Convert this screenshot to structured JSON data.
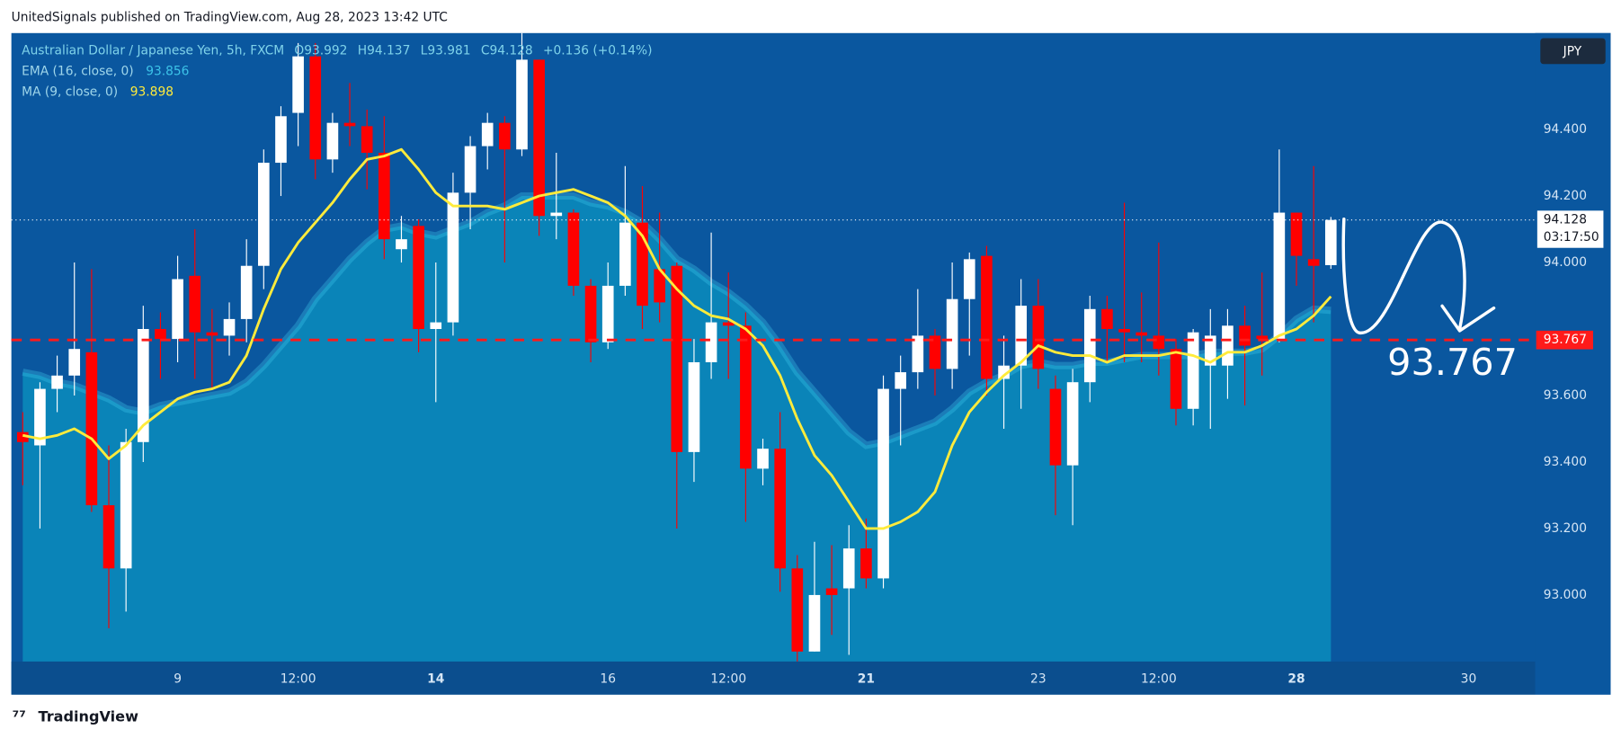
{
  "page_header": "UnitedSignals published on TradingView.com, Aug 28, 2023 13:42 UTC",
  "footer": "TradingView",
  "chart_data": {
    "type": "candlestick",
    "symbol": "Australian Dollar / Japanese Yen, 5h, FXCM",
    "ohlc_labels": [
      "O93.992",
      "H94.137",
      "L93.981",
      "C94.128",
      "+0.136 (+0.14%)"
    ],
    "currency": "JPY",
    "up_color": "#ffffff",
    "down_color": "#ff0000",
    "xlim": [
      -0.66,
      87.87
    ],
    "xticks": [
      {
        "value": 9,
        "label": "9"
      },
      {
        "value": 16,
        "label": "12:00"
      },
      {
        "value": 24,
        "label": "14"
      },
      {
        "value": 34,
        "label": "16"
      },
      {
        "value": 41,
        "label": "12:00"
      },
      {
        "value": 49,
        "label": "21"
      },
      {
        "value": 59,
        "label": "23"
      },
      {
        "value": 66,
        "label": "12:00"
      },
      {
        "value": 74,
        "label": "28"
      },
      {
        "value": 84,
        "label": "30"
      }
    ],
    "ylim": [
      92.8,
      94.69
    ],
    "yticks": [
      {
        "value": 93,
        "label": "93.000"
      },
      {
        "value": 93.2,
        "label": "93.200"
      },
      {
        "value": 93.4,
        "label": "93.400"
      },
      {
        "value": 93.6,
        "label": "93.600"
      },
      {
        "value": 94,
        "label": "94.000"
      },
      {
        "value": 94.2,
        "label": "94.200"
      },
      {
        "value": 94.4,
        "label": "94.400"
      }
    ],
    "grid": false,
    "candles": {
      "open": [
        93.49,
        93.45,
        93.62,
        93.66,
        93.73,
        93.27,
        93.08,
        93.46,
        93.8,
        93.77,
        93.96,
        93.79,
        93.78,
        93.83,
        93.99,
        94.3,
        94.45,
        94.62,
        94.31,
        94.42,
        94.41,
        94.33,
        94.04,
        94.11,
        93.8,
        93.82,
        94.21,
        94.35,
        94.42,
        94.34,
        94.61,
        94.14,
        94.15,
        93.93,
        93.76,
        93.93,
        94.12,
        93.98,
        93.99,
        93.43,
        93.7,
        93.82,
        93.81,
        93.38,
        93.44,
        93.08,
        92.83,
        93.02,
        93.02,
        93.14,
        93.05,
        93.62,
        93.67,
        93.78,
        93.68,
        93.89,
        94.02,
        93.65,
        93.69,
        93.87,
        93.62,
        93.39,
        93.64,
        93.86,
        93.8,
        93.79,
        93.78,
        93.74,
        93.56,
        93.69,
        93.69,
        93.81,
        93.78,
        93.77,
        94.15,
        94.01,
        93.992
      ],
      "high": [
        93.55,
        93.64,
        93.72,
        94.0,
        93.98,
        93.45,
        93.5,
        93.87,
        93.85,
        94.02,
        94.1,
        93.86,
        93.88,
        94.07,
        94.34,
        94.47,
        94.66,
        94.66,
        94.45,
        94.54,
        94.46,
        94.44,
        94.14,
        94.13,
        94.0,
        94.27,
        94.38,
        94.45,
        94.44,
        94.69,
        94.61,
        94.33,
        94.16,
        93.95,
        94.0,
        94.29,
        94.23,
        94.15,
        94.0,
        93.77,
        94.09,
        93.97,
        93.85,
        93.47,
        93.55,
        93.12,
        93.16,
        93.15,
        93.21,
        93.23,
        93.66,
        93.72,
        93.92,
        93.8,
        94.0,
        94.03,
        94.05,
        93.78,
        93.95,
        93.95,
        93.66,
        93.68,
        93.9,
        93.9,
        94.18,
        93.91,
        94.06,
        93.77,
        93.8,
        93.86,
        93.86,
        93.87,
        93.97,
        94.34,
        94.15,
        94.29,
        94.137
      ],
      "low": [
        93.33,
        93.2,
        93.55,
        93.6,
        93.25,
        92.9,
        92.95,
        93.4,
        93.65,
        93.7,
        93.65,
        93.62,
        93.72,
        93.76,
        93.92,
        94.2,
        94.35,
        94.25,
        94.27,
        94.35,
        94.22,
        94.01,
        94.0,
        93.73,
        93.58,
        93.78,
        94.1,
        94.28,
        94.0,
        94.32,
        94.08,
        94.07,
        93.9,
        93.7,
        93.74,
        93.9,
        93.8,
        93.82,
        93.2,
        93.34,
        93.65,
        93.65,
        93.22,
        93.33,
        93.01,
        92.8,
        92.83,
        92.88,
        92.82,
        93.02,
        93.02,
        93.45,
        93.62,
        93.6,
        93.62,
        93.72,
        93.6,
        93.5,
        93.56,
        93.62,
        93.24,
        93.21,
        93.58,
        93.7,
        93.7,
        93.7,
        93.66,
        93.51,
        93.51,
        93.5,
        93.59,
        93.57,
        93.66,
        93.76,
        93.93,
        93.82,
        93.981
      ],
      "close": [
        93.46,
        93.62,
        93.66,
        93.74,
        93.27,
        93.08,
        93.46,
        93.8,
        93.77,
        93.95,
        93.79,
        93.78,
        93.83,
        93.99,
        94.3,
        94.44,
        94.62,
        94.31,
        94.42,
        94.41,
        94.33,
        94.07,
        94.07,
        93.8,
        93.82,
        94.21,
        94.35,
        94.42,
        94.34,
        94.61,
        94.14,
        94.15,
        93.93,
        93.76,
        93.93,
        94.12,
        93.87,
        93.88,
        93.43,
        93.7,
        93.82,
        93.81,
        93.38,
        93.44,
        93.08,
        92.83,
        93.0,
        93.0,
        93.14,
        93.05,
        93.62,
        93.67,
        93.78,
        93.68,
        93.89,
        94.01,
        93.65,
        93.69,
        93.87,
        93.68,
        93.39,
        93.64,
        93.86,
        93.8,
        93.79,
        93.78,
        93.74,
        93.56,
        93.79,
        93.78,
        93.81,
        93.75,
        93.77,
        94.15,
        94.02,
        93.99,
        94.128
      ]
    },
    "lines": [
      {
        "name": "EMA (16, close, 0)",
        "value_label": "93.856",
        "color": "#3cc3e8",
        "fill": "#0a84b8",
        "values": [
          93.67,
          93.66,
          93.64,
          93.63,
          93.61,
          93.59,
          93.56,
          93.55,
          93.57,
          93.58,
          93.59,
          93.6,
          93.61,
          93.64,
          93.69,
          93.75,
          93.81,
          93.89,
          93.95,
          94.01,
          94.06,
          94.1,
          94.11,
          94.09,
          94.08,
          94.1,
          94.12,
          94.15,
          94.17,
          94.2,
          94.2,
          94.2,
          94.2,
          94.18,
          94.17,
          94.15,
          94.12,
          94.07,
          94.01,
          93.98,
          93.94,
          93.91,
          93.87,
          93.82,
          93.75,
          93.67,
          93.61,
          93.55,
          93.49,
          93.45,
          93.46,
          93.48,
          93.5,
          93.52,
          93.56,
          93.61,
          93.64,
          93.66,
          93.69,
          93.7,
          93.69,
          93.69,
          93.7,
          93.7,
          93.71,
          93.72,
          93.72,
          93.72,
          93.72,
          93.73,
          93.73,
          93.73,
          93.74,
          93.78,
          93.83,
          93.86,
          93.856
        ]
      },
      {
        "name": "MA (9, close, 0)",
        "value_label": "93.898",
        "color": "#ffeb3b",
        "values": [
          93.48,
          93.47,
          93.48,
          93.5,
          93.47,
          93.41,
          93.45,
          93.51,
          93.55,
          93.59,
          93.61,
          93.62,
          93.64,
          93.72,
          93.86,
          93.98,
          94.06,
          94.12,
          94.18,
          94.25,
          94.31,
          94.32,
          94.34,
          94.28,
          94.21,
          94.17,
          94.17,
          94.17,
          94.16,
          94.18,
          94.2,
          94.21,
          94.22,
          94.2,
          94.18,
          94.14,
          94.08,
          93.98,
          93.92,
          93.87,
          93.84,
          93.83,
          93.8,
          93.75,
          93.66,
          93.53,
          93.42,
          93.36,
          93.28,
          93.2,
          93.2,
          93.22,
          93.25,
          93.31,
          93.45,
          93.55,
          93.61,
          93.66,
          93.7,
          93.75,
          93.73,
          93.72,
          93.72,
          93.7,
          93.72,
          93.72,
          93.72,
          93.73,
          93.72,
          93.7,
          93.73,
          93.73,
          93.75,
          93.78,
          93.8,
          93.84,
          93.898
        ]
      }
    ],
    "hlines": [
      {
        "value": 93.767,
        "label": "93.767",
        "color": "#ff1a1a",
        "style": "dashed"
      },
      {
        "value": 94.128,
        "label": "94.128",
        "countdown": "03:17:50",
        "color": "#ffffff",
        "style": "dotted"
      }
    ],
    "annotation": "93.767"
  }
}
